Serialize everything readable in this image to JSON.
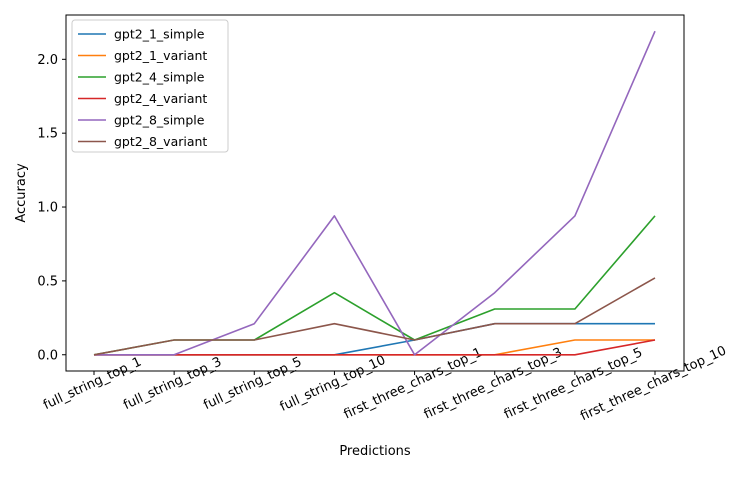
{
  "chart_data": {
    "type": "line",
    "categories": [
      "full_string_top_1",
      "full_string_top_3",
      "full_string_top_5",
      "full_string_top_10",
      "first_three_chars_top_1",
      "first_three_chars_top_3",
      "first_three_chars_top_5",
      "first_three_chars_top_10"
    ],
    "xlabel": "Predictions",
    "ylabel": "Accuracy",
    "ylim": [
      -0.11,
      2.3
    ],
    "yticks": [
      0.0,
      0.5,
      1.0,
      1.5,
      2.0
    ],
    "ytick_labels": [
      "0.0",
      "0.5",
      "1.0",
      "1.5",
      "2.0"
    ],
    "grid": false,
    "legend_position": "upper-left",
    "series": [
      {
        "name": "gpt2_1_simple",
        "color": "#1f77b4",
        "values": [
          0,
          0,
          0,
          0,
          0.1,
          0.21,
          0.21,
          0.21
        ]
      },
      {
        "name": "gpt2_1_variant",
        "color": "#ff7f0e",
        "values": [
          0,
          0,
          0,
          0,
          0,
          0,
          0.1,
          0.1
        ]
      },
      {
        "name": "gpt2_4_simple",
        "color": "#2ca02c",
        "values": [
          0,
          0.1,
          0.1,
          0.42,
          0.1,
          0.31,
          0.31,
          0.94
        ]
      },
      {
        "name": "gpt2_4_variant",
        "color": "#d62728",
        "values": [
          0,
          0,
          0,
          0,
          0,
          0,
          0,
          0.1
        ]
      },
      {
        "name": "gpt2_8_simple",
        "color": "#9467bd",
        "values": [
          0,
          0,
          0.21,
          0.94,
          0,
          0.42,
          0.94,
          2.19
        ]
      },
      {
        "name": "gpt2_8_variant",
        "color": "#8c564b",
        "values": [
          0,
          0.1,
          0.1,
          0.21,
          0.1,
          0.21,
          0.21,
          0.52
        ]
      }
    ]
  }
}
